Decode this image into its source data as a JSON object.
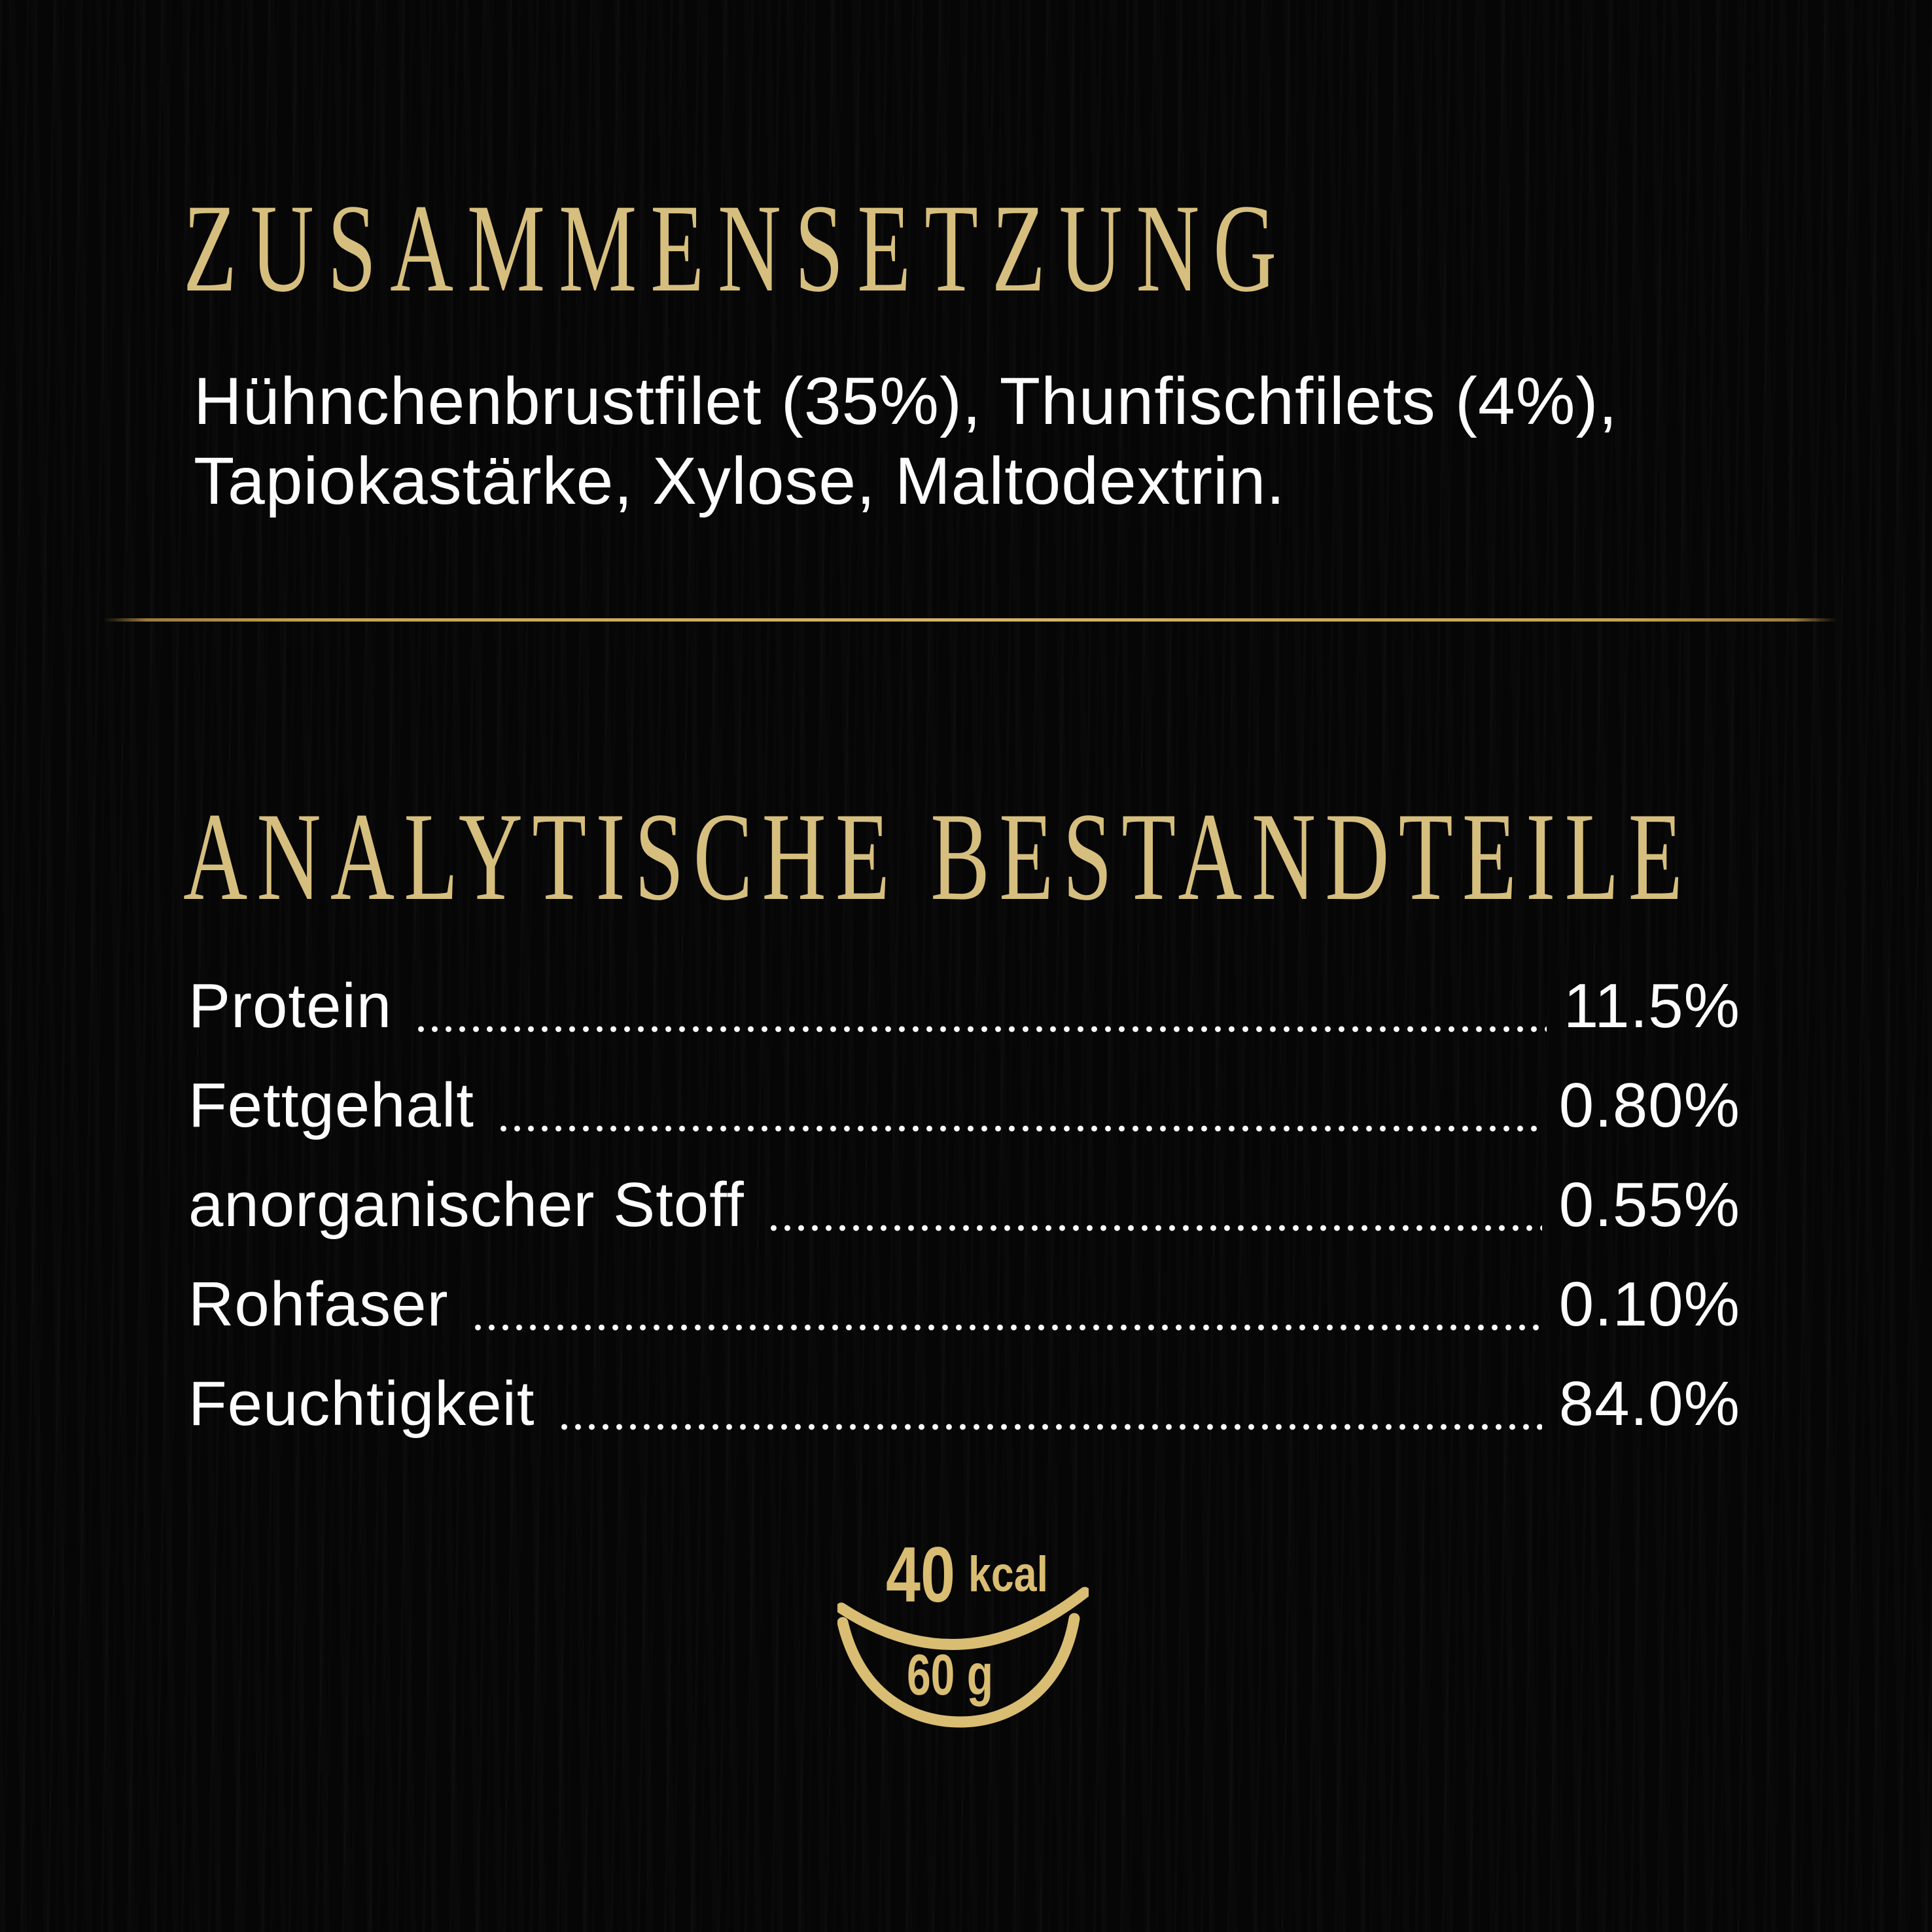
{
  "colors": {
    "background": "#070606",
    "heading_gold": "#d6bf7e",
    "divider_gold": "#d4b668",
    "icon_gold": "#d9bd72",
    "body_white": "#fdfdfd"
  },
  "composition": {
    "title": "ZUSAMMENSETZUNG",
    "lines": [
      "Hühnchenbrustfilet (35%), Thunfischfilets (4%),",
      "Tapiokastärke, Xylose, Maltodextrin."
    ]
  },
  "analysis": {
    "title": "ANALYTISCHE BESTANDTEILE",
    "rows": [
      {
        "label": "Protein",
        "value": "11.5%"
      },
      {
        "label": "Fettgehalt",
        "value": "0.80%"
      },
      {
        "label": "anorganischer Stoff",
        "value": "0.55%"
      },
      {
        "label": "Rohfaser",
        "value": "0.10%"
      },
      {
        "label": "Feuchtigkeit",
        "value": "84.0%"
      }
    ]
  },
  "serving": {
    "icon": "bowl-icon",
    "energy_value": "40",
    "energy_unit": "kcal",
    "portion_weight": "60 g"
  }
}
